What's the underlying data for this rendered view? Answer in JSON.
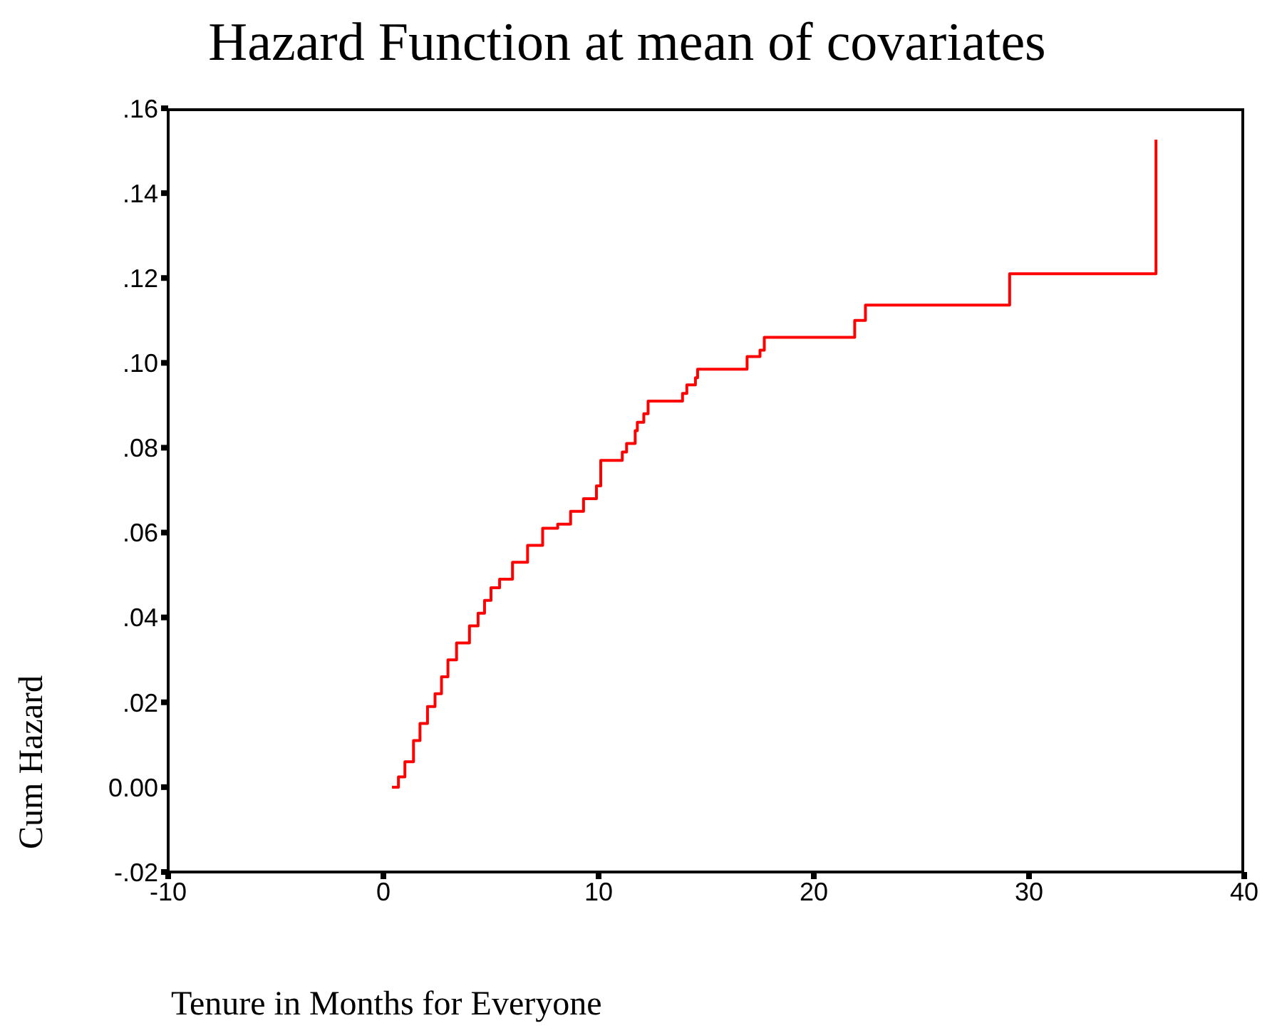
{
  "chart_data": {
    "type": "step",
    "title": "Hazard Function at mean of covariates",
    "xlabel": "Tenure in Months for Everyone",
    "ylabel": "Cum Hazard",
    "x": [
      0.4,
      0.7,
      1.0,
      1.4,
      1.7,
      2.05,
      2.4,
      2.7,
      3.0,
      3.4,
      4.0,
      4.4,
      4.7,
      5.0,
      5.4,
      6.0,
      6.7,
      7.4,
      8.1,
      8.7,
      9.3,
      9.9,
      10.1,
      11.1,
      11.3,
      11.7,
      11.8,
      12.1,
      12.3,
      12.8,
      13.9,
      14.1,
      14.5,
      14.6,
      16.9,
      17.5,
      17.7,
      21.9,
      22.4,
      29.1,
      35.9,
      35.9
    ],
    "series": [
      {
        "color": "#ff0000",
        "values": [
          0.0,
          0.0024,
          0.006,
          0.011,
          0.015,
          0.019,
          0.022,
          0.026,
          0.03,
          0.034,
          0.038,
          0.041,
          0.044,
          0.047,
          0.049,
          0.053,
          0.057,
          0.061,
          0.062,
          0.065,
          0.068,
          0.071,
          0.077,
          0.079,
          0.081,
          0.084,
          0.086,
          0.088,
          0.091,
          0.091,
          0.0928,
          0.0948,
          0.0965,
          0.0985,
          0.1015,
          0.103,
          0.106,
          0.11,
          0.1136,
          0.121,
          0.121,
          0.1526
        ]
      }
    ],
    "xlim": [
      -10,
      40
    ],
    "xticks": [
      -10,
      0,
      10,
      20,
      30,
      40
    ],
    "ylim": [
      -0.02,
      0.16
    ],
    "yticks": [
      {
        "value": -0.02,
        "label": "-.02"
      },
      {
        "value": 0,
        "label": "0.00"
      },
      {
        "value": 0.02,
        "label": ".02"
      },
      {
        "value": 0.04,
        "label": ".04"
      },
      {
        "value": 0.06,
        "label": ".06"
      },
      {
        "value": 0.08,
        "label": ".08"
      },
      {
        "value": 0.1,
        "label": ".10"
      },
      {
        "value": 0.12,
        "label": ".12"
      },
      {
        "value": 0.14,
        "label": ".14"
      },
      {
        "value": 0.16,
        "label": ".16"
      }
    ],
    "grid": false,
    "marker": "none",
    "line_style": "solid"
  }
}
